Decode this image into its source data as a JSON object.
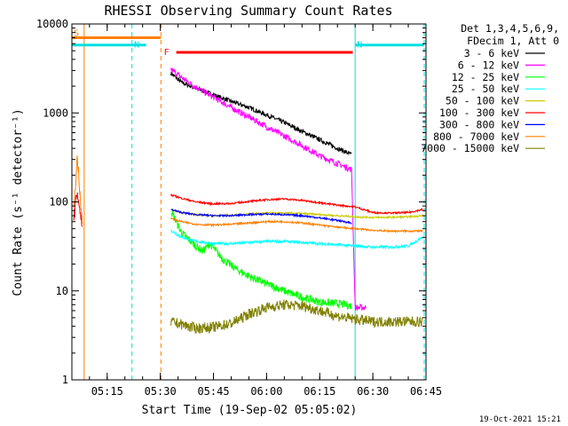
{
  "chart_data": {
    "type": "line",
    "title": "RHESSI Observing Summary Count Rates",
    "xlabel": "Start Time (19-Sep-02 05:05:02)",
    "ylabel": "Count Rate (s⁻¹ detector⁻¹)",
    "xscale": "time",
    "yscale": "log",
    "xlim": [
      "05:05:02",
      "06:45:00"
    ],
    "ylim": [
      1,
      10000
    ],
    "x_ticks": [
      "05:15",
      "05:30",
      "05:45",
      "06:00",
      "06:15",
      "06:30",
      "06:45"
    ],
    "y_ticks": [
      "1",
      "10",
      "100",
      "1000",
      "10000"
    ],
    "grid": false,
    "legend_placement": "right",
    "legend_header": [
      "Det 1,3,4,5,6,9,",
      "FDecim 1, Att 0"
    ],
    "footer_date": "19-Oct-2021 15:21",
    "flags": [
      {
        "label": "S",
        "color": "#ff8000",
        "start": "05:05:02",
        "end": "05:30:10",
        "level": 7000
      },
      {
        "label": "N",
        "color": "#00e0e0",
        "start": "05:05:02",
        "end": "05:26:00",
        "level": 5800
      },
      {
        "label": "N",
        "color": "#00e0e0",
        "start": "06:25:00",
        "end": "06:44:30",
        "level": 5800
      },
      {
        "label": "F",
        "color": "#ff0000",
        "start": "05:34:30",
        "end": "06:24:20",
        "level": 4800
      }
    ],
    "vertical_lines": [
      {
        "time": "05:05:02",
        "color": "#00e0e0",
        "style": "solid"
      },
      {
        "time": "05:08:30",
        "color": "#ff8000",
        "style": "solid"
      },
      {
        "time": "05:22:00",
        "color": "#00e0e0",
        "style": "dashed"
      },
      {
        "time": "05:30:10",
        "color": "#ff8000",
        "style": "dashed"
      },
      {
        "time": "06:25:00",
        "color": "#00e0e0",
        "style": "solid"
      },
      {
        "time": "06:44:30",
        "color": "#00e0e0",
        "style": "dashed"
      }
    ],
    "series": [
      {
        "name": "3 - 6 keV",
        "color": "#000000",
        "x": [
          "05:33",
          "05:36",
          "05:40",
          "05:45",
          "05:50",
          "05:55",
          "06:00",
          "06:05",
          "06:10",
          "06:15",
          "06:20",
          "06:24"
        ],
        "y": [
          2800,
          2200,
          1900,
          1600,
          1350,
          1150,
          950,
          780,
          620,
          500,
          400,
          340
        ]
      },
      {
        "name": "6 - 12 keV",
        "color": "#ff00ff",
        "x": [
          "05:33",
          "05:36",
          "05:40",
          "05:45",
          "05:50",
          "05:55",
          "06:00",
          "06:05",
          "06:10",
          "06:15",
          "06:20",
          "06:24",
          "06:25",
          "06:28"
        ],
        "y": [
          3100,
          2500,
          1950,
          1500,
          1150,
          900,
          700,
          550,
          430,
          330,
          270,
          230,
          6.5,
          6.5
        ]
      },
      {
        "name": "12 - 25 keV",
        "color": "#00ff00",
        "x": [
          "05:33",
          "05:36",
          "05:40",
          "05:42",
          "05:44",
          "05:46",
          "05:48",
          "05:52",
          "05:56",
          "06:00",
          "06:05",
          "06:10",
          "06:15",
          "06:20",
          "06:24"
        ],
        "y": [
          80,
          45,
          32,
          28,
          34,
          27,
          22,
          17,
          14,
          12,
          10,
          8.5,
          7.5,
          7.2,
          6.8
        ]
      },
      {
        "name": "25 - 50 keV",
        "color": "#00ffff",
        "x": [
          "05:33",
          "05:36",
          "05:40",
          "05:45",
          "05:50",
          "05:55",
          "06:00",
          "06:05",
          "06:10",
          "06:15",
          "06:20",
          "06:25",
          "06:30",
          "06:35",
          "06:40",
          "06:44"
        ],
        "y": [
          48,
          40,
          36,
          34,
          34,
          35,
          36,
          36,
          35,
          34,
          33,
          32,
          31,
          31,
          32,
          40
        ]
      },
      {
        "name": "50 - 100 keV",
        "color": "#cccc00",
        "x": [
          "05:33",
          "05:36",
          "05:40",
          "05:45",
          "05:50",
          "05:55",
          "06:00",
          "06:05",
          "06:10",
          "06:15",
          "06:20",
          "06:25",
          "06:30",
          "06:35",
          "06:40",
          "06:44"
        ],
        "y": [
          82,
          76,
          72,
          70,
          71,
          73,
          75,
          75,
          74,
          72,
          70,
          68,
          67,
          67,
          68,
          70
        ]
      },
      {
        "name": "100 - 300 keV",
        "color": "#ff0000",
        "x": [
          "05:33",
          "05:36",
          "05:40",
          "05:45",
          "05:50",
          "05:55",
          "06:00",
          "06:05",
          "06:10",
          "06:15",
          "06:20",
          "06:25",
          "06:30",
          "06:35",
          "06:40",
          "06:44"
        ],
        "y": [
          120,
          110,
          100,
          95,
          96,
          101,
          106,
          108,
          104,
          98,
          92,
          88,
          76,
          75,
          76,
          82
        ]
      },
      {
        "name": "300 - 800 keV",
        "color": "#0000ff",
        "x": [
          "05:33",
          "05:36",
          "05:40",
          "05:45",
          "05:50",
          "05:55",
          "06:00",
          "06:05",
          "06:10",
          "06:15",
          "06:20",
          "06:24"
        ],
        "y": [
          82,
          76,
          72,
          70,
          70,
          72,
          73,
          72,
          70,
          66,
          62,
          58
        ]
      },
      {
        "name": "800 - 7000 keV",
        "color": "#ff8000",
        "x": [
          "05:33",
          "05:36",
          "05:40",
          "05:45",
          "05:50",
          "05:55",
          "06:00",
          "06:05",
          "06:10",
          "06:15",
          "06:20",
          "06:25",
          "06:30",
          "06:35",
          "06:40",
          "06:44"
        ],
        "y": [
          65,
          60,
          56,
          55,
          56,
          58,
          60,
          60,
          58,
          55,
          52,
          50,
          48,
          47,
          47,
          47
        ]
      },
      {
        "name": "7000 - 15000 keV",
        "color": "#808000",
        "x": [
          "05:33",
          "05:36",
          "05:40",
          "05:45",
          "05:50",
          "05:55",
          "06:00",
          "06:05",
          "06:10",
          "06:15",
          "06:20",
          "06:25",
          "06:30",
          "06:35",
          "06:40",
          "06:44"
        ],
        "y": [
          4.5,
          4.2,
          3.8,
          3.9,
          4.3,
          5.5,
          6.5,
          7.0,
          6.8,
          6.0,
          5.2,
          4.8,
          4.5,
          4.5,
          4.5,
          4.5
        ]
      }
    ],
    "pre_segment": {
      "x": [
        "05:05:30",
        "05:06:00",
        "05:06:30",
        "05:07:00",
        "05:07:30",
        "05:08:00"
      ],
      "series_y": {
        "100 - 300 keV": [
          60,
          90,
          130,
          100,
          70,
          55
        ],
        "800 - 7000 keV": [
          80,
          150,
          300,
          200,
          90,
          60
        ]
      }
    }
  }
}
